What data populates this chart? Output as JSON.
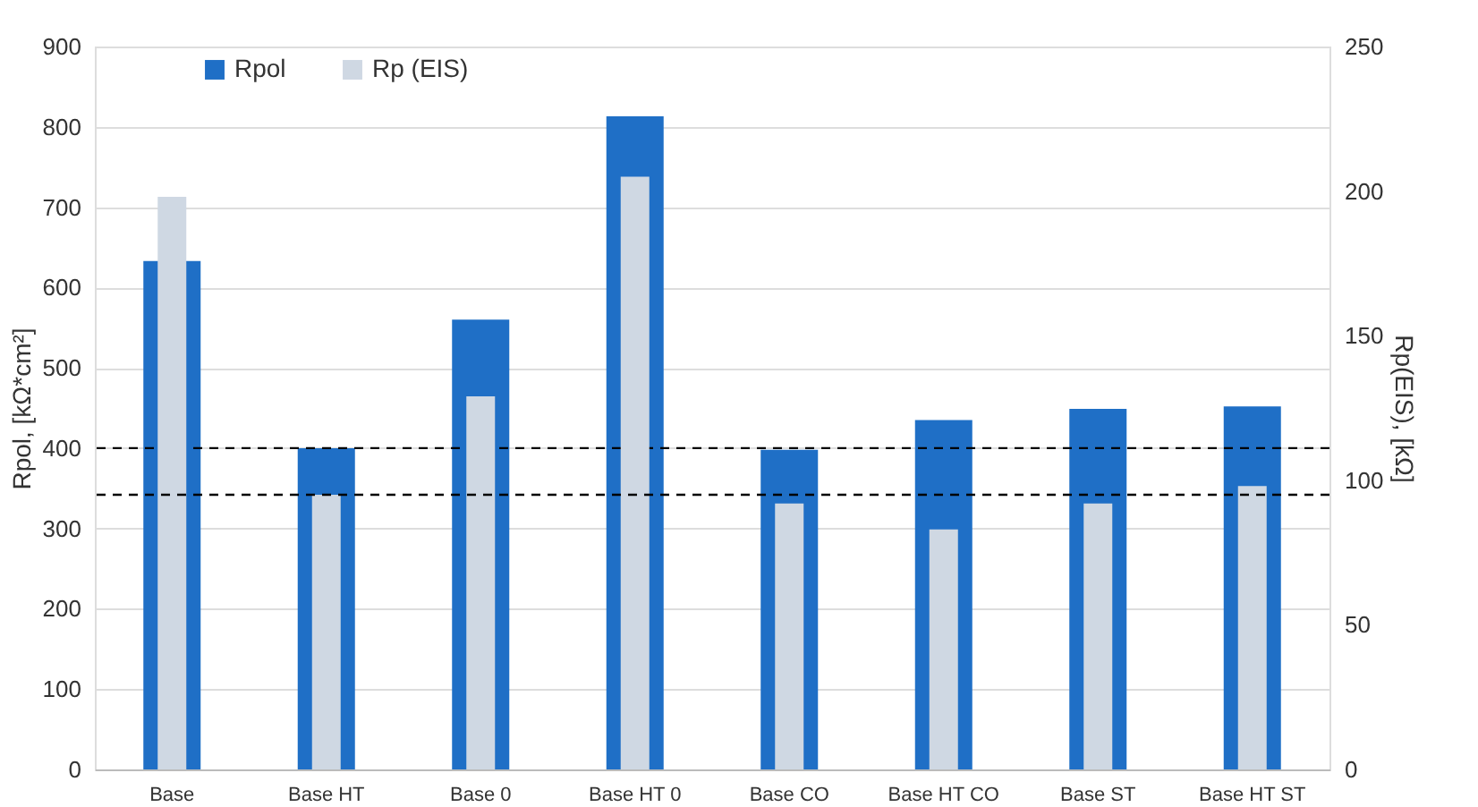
{
  "chart_data": {
    "type": "bar",
    "categories": [
      "Base",
      "Base  HT",
      "Base  0",
      "Base  HT  0",
      "Base  CO",
      "Base  HT  CO",
      "Base  ST",
      "Base  HT  ST"
    ],
    "series": [
      {
        "name": "Rpol",
        "color": "#1f6fc6",
        "values": [
          633,
          400,
          560,
          813,
          398,
          435,
          449,
          452
        ]
      },
      {
        "name": "Rp (EIS)",
        "color": "#cfd8e3",
        "axis": "y2",
        "values": [
          198,
          95,
          129,
          205,
          92,
          83,
          92,
          98
        ]
      }
    ],
    "ylabel": "Rpol, [kΩ*cm²]",
    "y2label": "Rp(EIS), [kΩ]",
    "ylim": [
      0,
      900
    ],
    "yticks": [
      0,
      100,
      200,
      300,
      400,
      500,
      600,
      700,
      800,
      900
    ],
    "y2lim": [
      0,
      250
    ],
    "y2ticks": [
      0,
      50,
      100,
      150,
      200,
      250
    ],
    "ref_lines": [
      {
        "axis": "y",
        "value": 400,
        "line_style": "dashed",
        "color": "#000000"
      },
      {
        "axis": "y2",
        "value": 95,
        "line_style": "dashed",
        "color": "#000000"
      }
    ],
    "grid": "y",
    "legend": "top left"
  }
}
